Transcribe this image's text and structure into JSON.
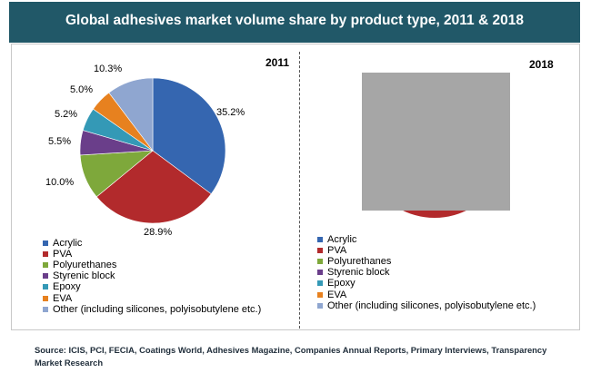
{
  "title": "Global adhesives market volume share by product type, 2011 & 2018",
  "source_text": "Source: ICIS, PCI, FECIA, Coatings World, Adhesives Magazine, Companies Annual Reports, Primary Interviews, Transparency Market Research",
  "colors": {
    "header_bg": "#215868",
    "Acrylic": "#3566b0",
    "PVA": "#b22a2c",
    "Polyurethanes": "#7ea83b",
    "Styrenic block": "#6a3e8a",
    "Epoxy": "#3499b6",
    "EVA": "#e7811f",
    "Other": "#8fa6d0"
  },
  "chart_data": [
    {
      "type": "pie",
      "title": "2011",
      "labels": [
        "Acrylic",
        "PVA",
        "Polyurethanes",
        "Styrenic block",
        "Epoxy",
        "EVA",
        "Other (including silicones, polyisobutylene etc.)"
      ],
      "values": [
        35.2,
        28.9,
        10.0,
        5.5,
        5.2,
        5.0,
        10.3
      ],
      "value_labels": [
        "35.2%",
        "28.9%",
        "10.0%",
        "5.5%",
        "5.2%",
        "5.0%",
        "10.3%"
      ],
      "legend": "bottom-left"
    },
    {
      "type": "pie",
      "title": "2018",
      "labels": [
        "Acrylic",
        "PVA",
        "Polyurethanes",
        "Styrenic block",
        "Epoxy",
        "EVA",
        "Other (including silicones, polyisobutylene etc.)"
      ],
      "note": "pie values obscured by a gray box in the image",
      "legend": "bottom-left"
    }
  ]
}
